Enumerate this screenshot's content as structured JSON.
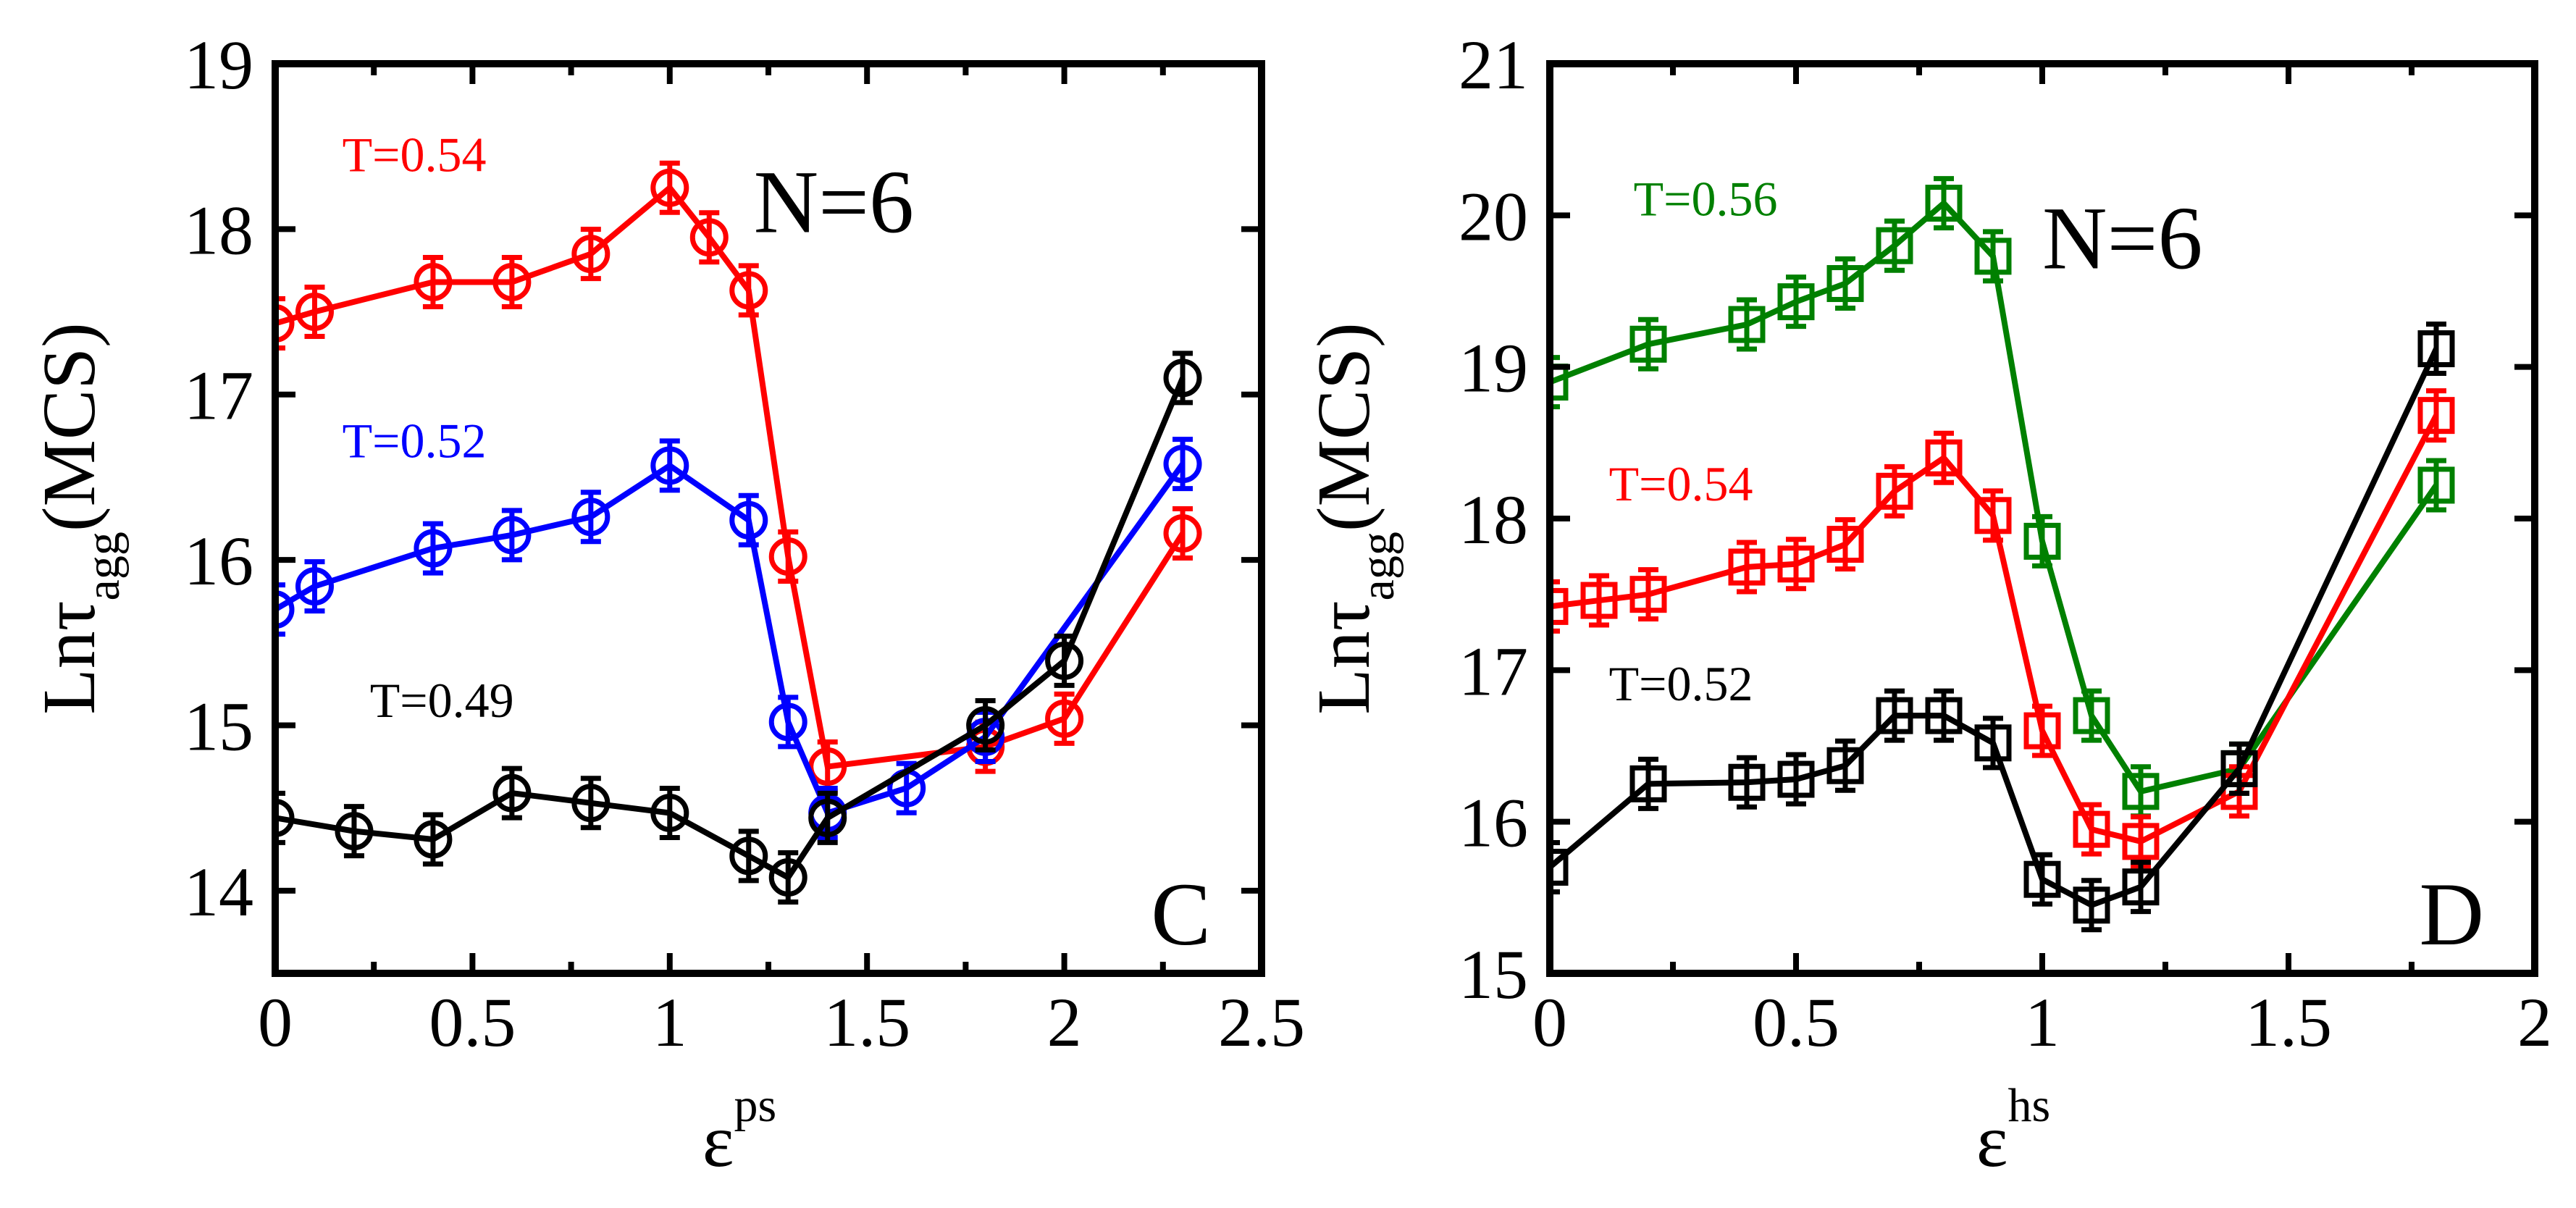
{
  "chart_data": [
    {
      "type": "line",
      "panel_label": "C",
      "annotation": "N=6",
      "xlabel_main": "ε",
      "xlabel_sup": "ps",
      "ylabel_main": "Lnτ",
      "ylabel_sub": "agg",
      "ylabel_unit": "(MCS)",
      "xlim": [
        0,
        2.5
      ],
      "ylim": [
        13.5,
        19
      ],
      "xticks": [
        0,
        0.5,
        1,
        1.5,
        2,
        2.5
      ],
      "xtick_labels": [
        "0",
        "0.5",
        "1",
        "1.5",
        "2",
        "2.5"
      ],
      "yticks": [
        14,
        15,
        16,
        17,
        18,
        19
      ],
      "ytick_labels": [
        "14",
        "15",
        "16",
        "17",
        "18",
        "19"
      ],
      "marker": "circle",
      "series": [
        {
          "label": "T=0.54",
          "color": "#ff0000",
          "label_at": [
            0.17,
            18.35
          ],
          "x": [
            0,
            0.1,
            0.4,
            0.6,
            0.8,
            1.0,
            1.1,
            1.2,
            1.3,
            1.4,
            1.8,
            2.0,
            2.3
          ],
          "y": [
            17.43,
            17.5,
            17.68,
            17.68,
            17.85,
            18.25,
            17.95,
            17.63,
            16.02,
            14.75,
            14.87,
            15.04,
            16.16
          ]
        },
        {
          "label": "T=0.52",
          "color": "#0000ff",
          "label_at": [
            0.17,
            16.62
          ],
          "x": [
            0,
            0.1,
            0.4,
            0.6,
            0.8,
            1.0,
            1.2,
            1.3,
            1.4,
            1.6,
            1.8,
            2.3
          ],
          "y": [
            15.7,
            15.84,
            16.07,
            16.15,
            16.26,
            16.57,
            16.24,
            15.02,
            14.47,
            14.62,
            14.93,
            16.58
          ]
        },
        {
          "label": "T=0.49",
          "color": "#000000",
          "label_at": [
            0.24,
            15.05
          ],
          "x": [
            0,
            0.2,
            0.4,
            0.6,
            0.8,
            1.0,
            1.2,
            1.3,
            1.4,
            1.8,
            2.0,
            2.3
          ],
          "y": [
            14.44,
            14.36,
            14.31,
            14.59,
            14.53,
            14.47,
            14.21,
            14.08,
            14.44,
            15.0,
            15.39,
            17.1
          ]
        }
      ]
    },
    {
      "type": "line",
      "panel_label": "D",
      "annotation": "N=6",
      "xlabel_main": "ε",
      "xlabel_sup": "hs",
      "ylabel_main": "Lnτ",
      "ylabel_sub": "agg",
      "ylabel_unit": "(MCS)",
      "xlim": [
        0,
        2
      ],
      "ylim": [
        15,
        21
      ],
      "xticks": [
        0,
        0.5,
        1,
        1.5,
        2
      ],
      "xtick_labels": [
        "0",
        "0.5",
        "1",
        "1.5",
        "2"
      ],
      "yticks": [
        15,
        16,
        17,
        18,
        19,
        20,
        21
      ],
      "ytick_labels": [
        "15",
        "16",
        "17",
        "18",
        "19",
        "20",
        "21"
      ],
      "marker": "square",
      "series": [
        {
          "label": "T=0.56",
          "color": "#008000",
          "label_at": [
            0.17,
            20.0
          ],
          "x": [
            0,
            0.2,
            0.4,
            0.5,
            0.6,
            0.7,
            0.8,
            0.9,
            1.0,
            1.1,
            1.2,
            1.4,
            1.8
          ],
          "y": [
            18.9,
            19.15,
            19.28,
            19.43,
            19.55,
            19.8,
            20.08,
            19.73,
            17.85,
            16.7,
            16.2,
            16.35,
            18.22
          ]
        },
        {
          "label": "T=0.54",
          "color": "#ff0000",
          "label_at": [
            0.12,
            18.12
          ],
          "x": [
            0,
            0.1,
            0.2,
            0.4,
            0.5,
            0.6,
            0.7,
            0.8,
            0.9,
            1.0,
            1.1,
            1.2,
            1.4,
            1.8
          ],
          "y": [
            17.42,
            17.46,
            17.5,
            17.68,
            17.7,
            17.83,
            18.18,
            18.4,
            18.02,
            16.6,
            15.95,
            15.87,
            16.2,
            18.68
          ]
        },
        {
          "label": "T=0.52",
          "color": "#000000",
          "label_at": [
            0.12,
            16.8
          ],
          "x": [
            0,
            0.2,
            0.4,
            0.5,
            0.6,
            0.7,
            0.8,
            0.9,
            1.0,
            1.1,
            1.2,
            1.4,
            1.8
          ],
          "y": [
            15.7,
            16.25,
            16.26,
            16.28,
            16.37,
            16.7,
            16.7,
            16.52,
            15.62,
            15.45,
            15.57,
            16.35,
            19.12
          ]
        }
      ]
    }
  ]
}
